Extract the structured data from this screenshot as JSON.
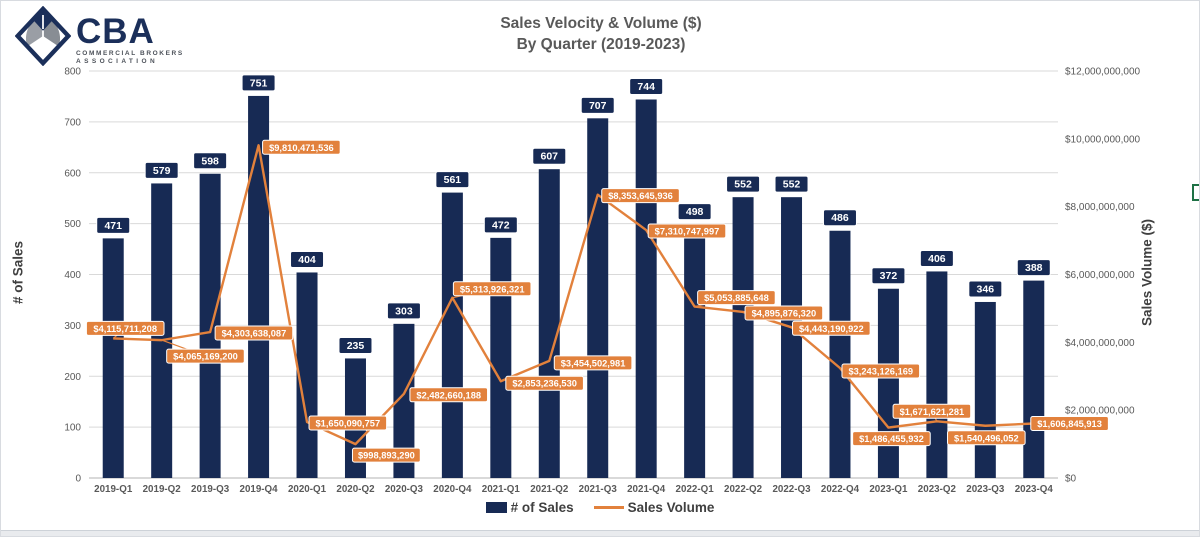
{
  "logo": {
    "acronym": "CBA",
    "tagline1": "COMMERCIAL BROKERS",
    "tagline2": "ASSOCIATION"
  },
  "title": {
    "line1": "Sales Velocity & Volume ($)",
    "line2": "By Quarter (2019-2023)"
  },
  "axes": {
    "left": {
      "title": "# of Sales",
      "ticks": [
        "800",
        "700",
        "600",
        "500",
        "400",
        "300",
        "200",
        "100",
        "0"
      ],
      "max": 800
    },
    "right": {
      "title": "Sales Volume ($)",
      "ticks": [
        "$12,000,000,000",
        "$10,000,000,000",
        "$8,000,000,000",
        "$6,000,000,000",
        "$4,000,000,000",
        "$2,000,000,000",
        "$0"
      ],
      "max": 12000000000
    }
  },
  "legend": {
    "items": [
      {
        "label": "# of Sales",
        "swatch": "bar",
        "color": "#172a54"
      },
      {
        "label": "Sales Volume",
        "swatch": "line",
        "color": "#e2813c"
      }
    ]
  },
  "chart_data": {
    "type": "combo-bar-line",
    "title": "Sales Velocity & Volume ($) By Quarter (2019-2023)",
    "categories": [
      "2019-Q1",
      "2019-Q2",
      "2019-Q3",
      "2019-Q4",
      "2020-Q1",
      "2020-Q2",
      "2020-Q3",
      "2020-Q4",
      "2021-Q1",
      "2021-Q2",
      "2021-Q3",
      "2021-Q4",
      "2022-Q1",
      "2022-Q2",
      "2022-Q3",
      "2022-Q4",
      "2023-Q1",
      "2023-Q2",
      "2023-Q3",
      "2023-Q4"
    ],
    "series": [
      {
        "name": "# of Sales",
        "type": "bar",
        "axis": "left",
        "color": "#172a54",
        "values": [
          471,
          579,
          598,
          751,
          404,
          235,
          303,
          561,
          472,
          607,
          707,
          744,
          498,
          552,
          552,
          486,
          372,
          406,
          346,
          388
        ]
      },
      {
        "name": "Sales Volume",
        "type": "line",
        "axis": "right",
        "color": "#e2813c",
        "values": [
          4115711208,
          4065169200,
          4303638087,
          9810471536,
          1650090757,
          998893290,
          2482660188,
          5313926321,
          2853236530,
          3454502981,
          8353645936,
          7310747997,
          5053885648,
          4895876320,
          4443190922,
          3243126169,
          1486455932,
          1671621281,
          1540496052,
          1606845913
        ],
        "data_labels": [
          "$4,115,711,208",
          "$4,065,169,200",
          "$4,303,638,087",
          "$9,810,471,536",
          "$1,650,090,757",
          "$998,893,290",
          "$2,482,660,188",
          "$5,313,926,321",
          "$2,853,236,530",
          "$3,454,502,981",
          "$8,353,645,936",
          "$7,310,747,997",
          "$5,053,885,648",
          "$4,895,876,320",
          "$4,443,190,922",
          "$3,243,126,169",
          "$1,486,455,932",
          "$1,671,621,281",
          "$1,540,496,052",
          "$1,606,845,913"
        ]
      }
    ],
    "left_ylim": [
      0,
      800
    ],
    "right_ylim": [
      0,
      12000000000
    ],
    "grid": "horizontal",
    "legend_position": "bottom"
  },
  "colors": {
    "bar": "#172a54",
    "line": "#e2813c",
    "title_text": "#595959",
    "axis_text": "#595959",
    "gridline": "#d9d9d9",
    "zero_line": "#b3b3b3",
    "logo_navy": "#1b2f5a",
    "logo_gray": "#9a9ea5",
    "artifact_green": "#1e7145"
  }
}
